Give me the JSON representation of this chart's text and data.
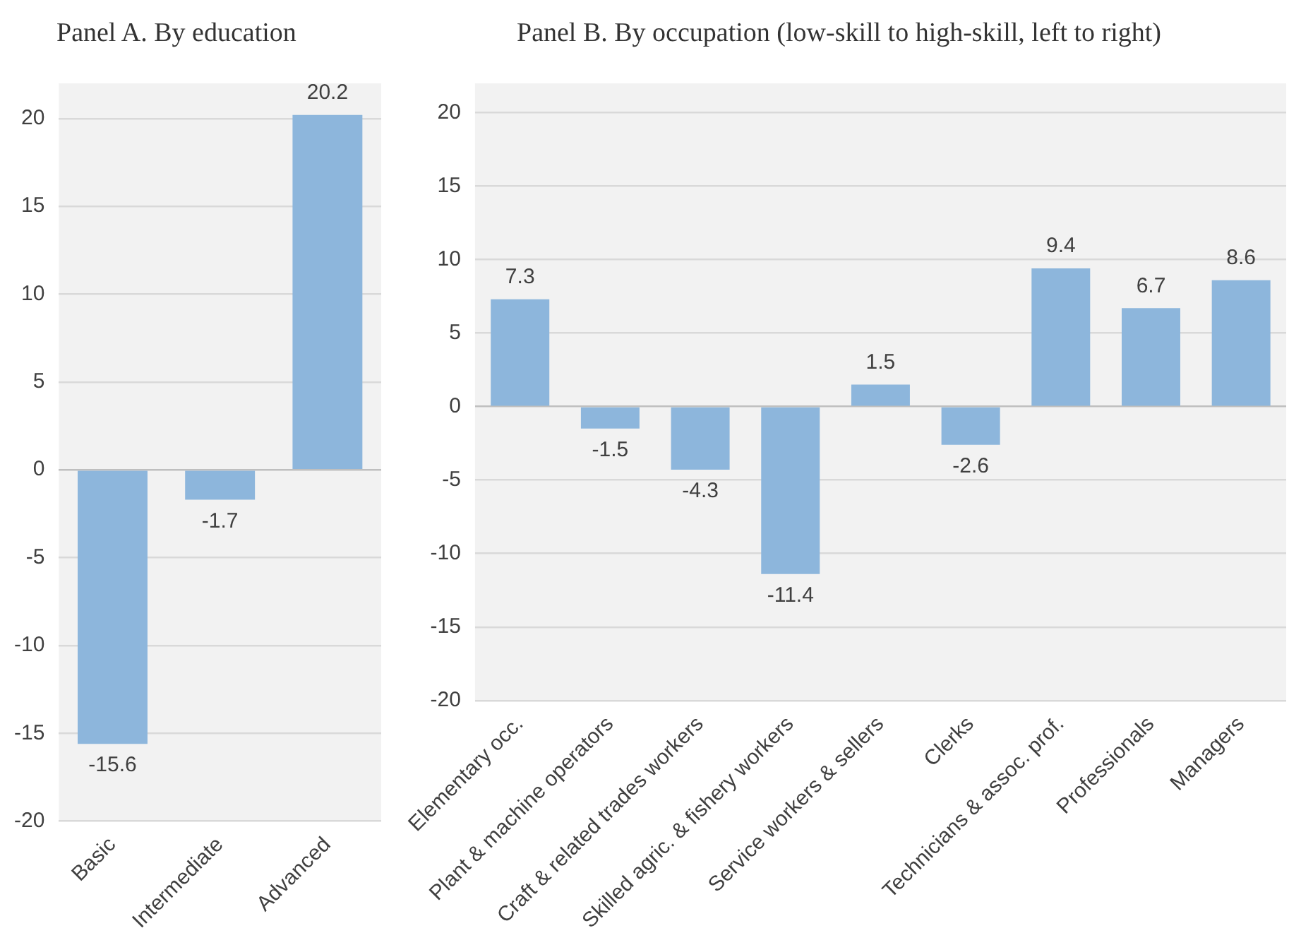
{
  "chart_data": [
    {
      "type": "bar",
      "title": "Panel A. By education",
      "categories": [
        "Basic",
        "Intermediate",
        "Advanced"
      ],
      "values": [
        -15.6,
        -1.7,
        20.2
      ],
      "color": "#8db6dc",
      "ylim": [
        -20,
        22
      ],
      "yticks": [
        -20,
        -15,
        -10,
        -5,
        0,
        5,
        10,
        15,
        20
      ],
      "grid": "y",
      "data_labels": true
    },
    {
      "type": "bar",
      "title": "Panel B. By occupation (low-skill to high-skill, left to right)",
      "categories": [
        "Elementary occ.",
        "Plant & machine operators",
        "Craft & related trades workers",
        "Skilled agric. & fishery workers",
        "Service workers & sellers",
        "Clerks",
        "Technicians & assoc. prof.",
        "Professionals",
        "Managers"
      ],
      "values": [
        7.3,
        -1.5,
        -4.3,
        -11.4,
        1.5,
        -2.6,
        9.4,
        6.7,
        8.6
      ],
      "color": "#8db6dc",
      "ylim": [
        -20,
        22
      ],
      "yticks": [
        -20,
        -15,
        -10,
        -5,
        0,
        5,
        10,
        15,
        20
      ],
      "grid": "y",
      "data_labels": true
    }
  ]
}
